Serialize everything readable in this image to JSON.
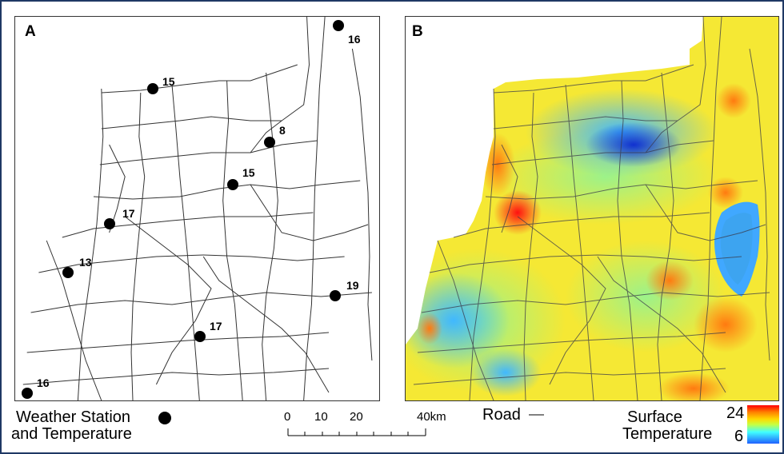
{
  "panel_a": {
    "label": "A",
    "stations": [
      {
        "temp": "16"
      },
      {
        "temp": "15"
      },
      {
        "temp": "8"
      },
      {
        "temp": "15"
      },
      {
        "temp": "17"
      },
      {
        "temp": "13"
      },
      {
        "temp": "19"
      },
      {
        "temp": "17"
      },
      {
        "temp": "16"
      }
    ]
  },
  "panel_b": {
    "label": "B"
  },
  "legend": {
    "station_line1": "Weather Station",
    "station_line2": "and Temperature",
    "scale_ticks": [
      "0",
      "10",
      "20",
      "40km"
    ],
    "road_label": "Road",
    "surface_line1": "Surface",
    "surface_line2": "Temperature",
    "colorbar_max": "24",
    "colorbar_min": "6"
  },
  "colors": {
    "frame": "#1f3864",
    "road": "#333333",
    "station": "#000000",
    "hot": "#ff0000",
    "cold": "#2060ff"
  }
}
